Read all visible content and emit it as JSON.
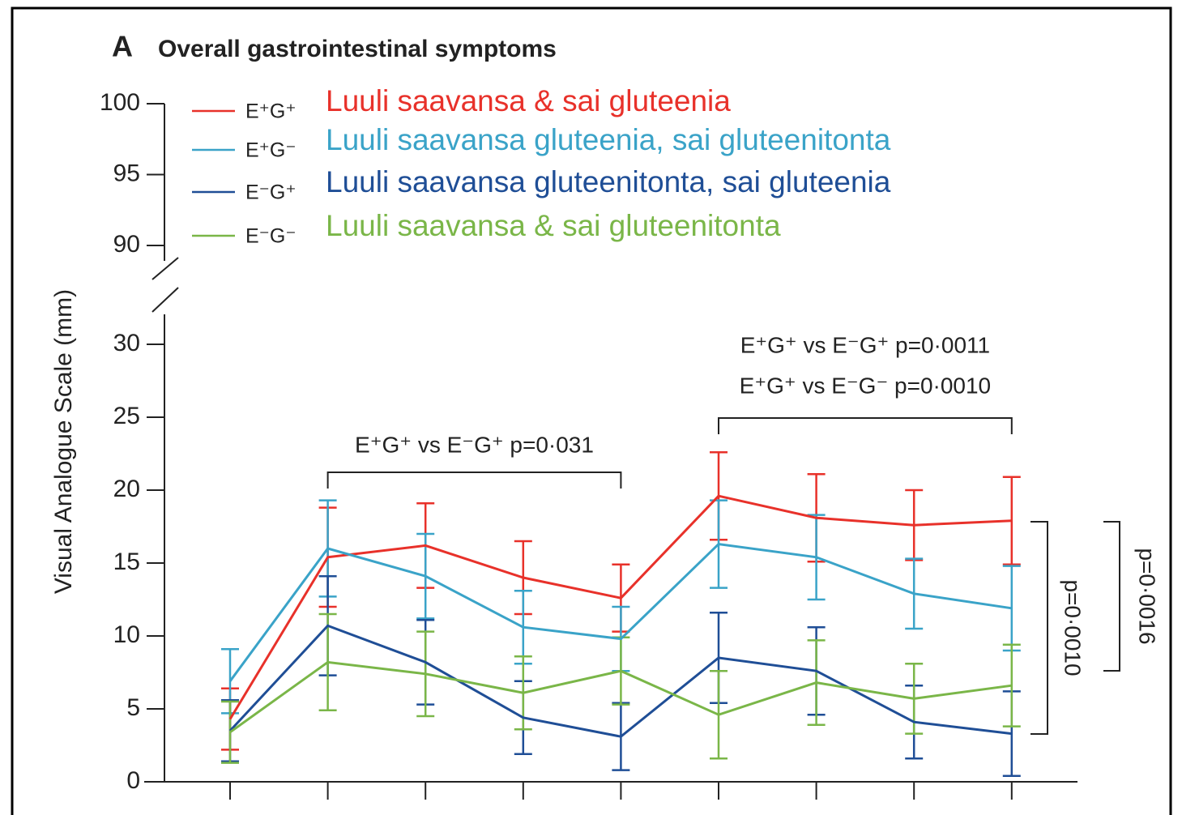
{
  "chart_data": {
    "type": "line",
    "panel": "A",
    "title": "Overall gastrointestinal symptoms",
    "y_label": "Visual Analogue Scale (mm)",
    "categories": [
      null,
      null,
      null,
      null,
      null,
      null,
      null,
      null,
      null
    ],
    "ylim": [
      0,
      30
    ],
    "yticks": [
      0,
      5,
      10,
      15,
      20,
      25,
      30
    ],
    "ylim_upper": [
      90,
      100
    ],
    "yticks_upper": [
      90,
      95,
      100
    ],
    "series": [
      {
        "name": "E⁺G⁺",
        "description": "Luuli saavansa & sai gluteenia",
        "color": "#e8312a",
        "values": [
          4.3,
          15.4,
          16.2,
          14.0,
          12.6,
          19.6,
          18.1,
          17.6,
          17.9
        ],
        "errors": [
          2.1,
          3.4,
          2.9,
          2.5,
          2.3,
          3.0,
          3.0,
          2.4,
          3.0
        ]
      },
      {
        "name": "E⁺G⁻",
        "description": "Luuli saavansa gluteenia, sai gluteenitonta",
        "color": "#3aa3c8",
        "values": [
          6.9,
          16.0,
          14.1,
          10.6,
          9.8,
          16.3,
          15.4,
          12.9,
          11.9
        ],
        "errors": [
          2.2,
          3.3,
          2.9,
          2.5,
          2.2,
          3.0,
          2.9,
          2.4,
          2.9
        ]
      },
      {
        "name": "E⁻G⁺",
        "description": "Luuli saavansa gluteenitonta, sai gluteenia",
        "color": "#1f4e96",
        "values": [
          3.5,
          10.7,
          8.2,
          4.4,
          3.1,
          8.5,
          7.6,
          4.1,
          3.3
        ],
        "errors": [
          2.1,
          3.4,
          2.9,
          2.5,
          2.3,
          3.1,
          3.0,
          2.5,
          2.9
        ]
      },
      {
        "name": "E⁻G⁻",
        "description": "Luuli saavansa & sai gluteenitonta",
        "color": "#7ab648",
        "values": [
          3.4,
          8.2,
          7.4,
          6.1,
          7.6,
          4.6,
          6.8,
          5.7,
          6.6
        ],
        "errors": [
          2.1,
          3.3,
          2.9,
          2.5,
          2.3,
          3.0,
          2.9,
          2.4,
          2.8
        ]
      }
    ],
    "annotations": [
      {
        "text": "E⁺G⁺ vs E⁻G⁺ p=0·031"
      },
      {
        "text": "E⁺G⁺ vs E⁻G⁺ p=0·0011"
      },
      {
        "text": "E⁺G⁺ vs E⁻G⁻ p=0·0010"
      },
      {
        "text": "p=0·0010"
      },
      {
        "text": "p=0·0016"
      }
    ]
  }
}
